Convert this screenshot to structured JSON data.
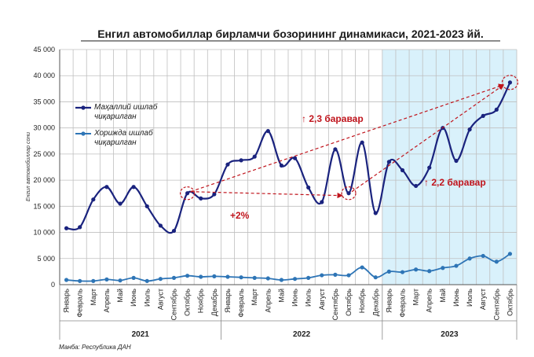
{
  "chart_data": {
    "type": "line",
    "title": "Енгил автомобиллар бирламчи бозорининг динамикаси, 2021-2023 йй.",
    "ylabel": "Енгил автомобиллар сони",
    "ylim": [
      0,
      45000
    ],
    "yticks": [
      0,
      5000,
      10000,
      15000,
      20000,
      25000,
      30000,
      35000,
      40000,
      45000
    ],
    "ytick_labels": [
      "0",
      "5 000",
      "10 000",
      "15 000",
      "20 000",
      "25 000",
      "30 000",
      "35 000",
      "40 000",
      "45 000"
    ],
    "categories": [
      "Январь",
      "Февраль",
      "Март",
      "Апрель",
      "Май",
      "Июнь",
      "Июль",
      "Август",
      "Сентябрь",
      "Октябрь",
      "Ноябрь",
      "Декабрь",
      "Январь",
      "Февраль",
      "Март",
      "Апрель",
      "Май",
      "Июнь",
      "Июль",
      "Август",
      "Сентябрь",
      "Октябрь",
      "Ноябрь",
      "Декабрь",
      "Январь",
      "Февраль",
      "Март",
      "Апрель",
      "Май",
      "Июнь",
      "Июль",
      "Август",
      "Сентябрь",
      "Октябрь"
    ],
    "year_groups": [
      {
        "label": "2021",
        "start": 0,
        "end": 11
      },
      {
        "label": "2022",
        "start": 12,
        "end": 23
      },
      {
        "label": "2023",
        "start": 24,
        "end": 33
      }
    ],
    "series": [
      {
        "name": "Маҳаллий ишлаб чиқарилган",
        "color": "#1a237e",
        "values": [
          10800,
          11000,
          16300,
          18700,
          15500,
          18700,
          15000,
          11300,
          10300,
          17500,
          16500,
          17300,
          23000,
          23800,
          24500,
          29400,
          22800,
          24200,
          18600,
          15800,
          25900,
          17500,
          27200,
          13700,
          23500,
          21900,
          18900,
          22400,
          30000,
          23700,
          29700,
          32300,
          33500,
          38700
        ]
      },
      {
        "name": "Хорижда ишлаб чиқарилган",
        "color": "#2e75b6",
        "values": [
          900,
          700,
          700,
          1000,
          800,
          1300,
          700,
          1100,
          1300,
          1700,
          1500,
          1600,
          1500,
          1400,
          1300,
          1200,
          900,
          1100,
          1300,
          1800,
          1900,
          1800,
          3300,
          1400,
          2500,
          2400,
          2900,
          2600,
          3200,
          3600,
          5000,
          5500,
          4400,
          5900
        ]
      }
    ],
    "highlight_region": {
      "start": 24,
      "end": 33,
      "color": "#d9f1fb"
    },
    "annotations": [
      {
        "text": "↑ 2,3 баравар"
      },
      {
        "text": "↑ 2,2 баравар"
      },
      {
        "text": "+2%"
      }
    ],
    "grid": true,
    "legend_position": "top-left"
  },
  "source": "Манба: Республика ДАН"
}
